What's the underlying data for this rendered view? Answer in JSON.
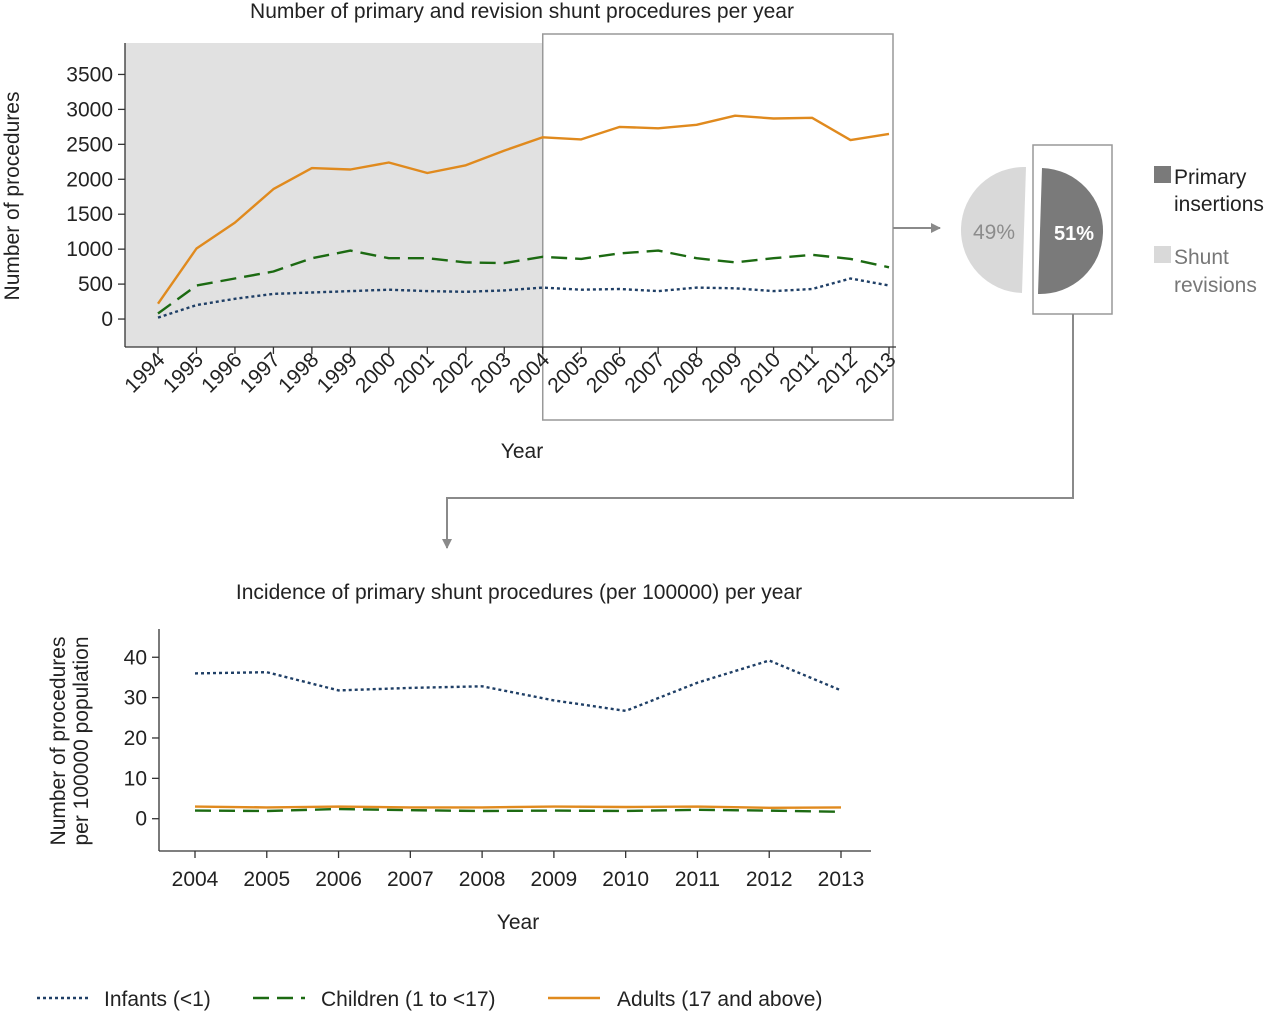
{
  "colors": {
    "infants": "#1f3f66",
    "children": "#1c6a12",
    "adults": "#e08a1e",
    "shade": "#e1e1e1",
    "primary": "#7a7a7a",
    "revision": "#d9d9d9",
    "box": "#999999"
  },
  "chart_data": [
    {
      "type": "line",
      "title": "Number of primary and revision shunt procedures per year",
      "xlabel": "Year",
      "ylabel": "Number of procedures",
      "ylim": [
        -400,
        3950
      ],
      "yticks": [
        0,
        500,
        1000,
        1500,
        2000,
        2500,
        3000,
        3500
      ],
      "grid": false,
      "shaded_range": [
        "1994",
        "2004"
      ],
      "highlight_range": [
        "2004",
        "2013"
      ],
      "categories": [
        "1994",
        "1995",
        "1996",
        "1997",
        "1998",
        "1999",
        "2000",
        "2001",
        "2002",
        "2003",
        "2004",
        "2005",
        "2006",
        "2007",
        "2008",
        "2009",
        "2010",
        "2011",
        "2012",
        "2013"
      ],
      "series": [
        {
          "name": "Infants (<1)",
          "style": "dotted",
          "values": [
            20,
            200,
            290,
            360,
            380,
            400,
            420,
            400,
            390,
            410,
            450,
            420,
            430,
            400,
            450,
            440,
            400,
            430,
            580,
            480
          ]
        },
        {
          "name": "Children (1 to <17)",
          "style": "dashed",
          "values": [
            80,
            480,
            580,
            680,
            870,
            980,
            870,
            870,
            810,
            800,
            890,
            860,
            940,
            980,
            870,
            810,
            870,
            920,
            860,
            740
          ]
        },
        {
          "name": "Adults (17 and above)",
          "style": "solid",
          "values": [
            220,
            1010,
            1380,
            1860,
            2160,
            2140,
            2240,
            2090,
            2200,
            2410,
            2600,
            2570,
            2750,
            2730,
            2780,
            2910,
            2870,
            2880,
            2560,
            2650
          ]
        }
      ]
    },
    {
      "type": "pie",
      "labels": [
        "Shunt revisions",
        "Primary insertions"
      ],
      "values": [
        49,
        51
      ],
      "data_labels": [
        "49%",
        "51%"
      ],
      "legend": [
        {
          "line1": "Primary",
          "line2": "insertions"
        },
        {
          "line1": "Shunt",
          "line2": "revisions"
        }
      ]
    },
    {
      "type": "line",
      "title": "Incidence of primary shunt procedures (per 100000) per year",
      "xlabel": "Year",
      "ylabel_line1": "Number of procedures",
      "ylabel_line2": "per 100000 population",
      "ylim": [
        -8,
        47
      ],
      "yticks": [
        0,
        10,
        20,
        30,
        40
      ],
      "grid": false,
      "categories": [
        "2004",
        "2005",
        "2006",
        "2007",
        "2008",
        "2009",
        "2010",
        "2011",
        "2012",
        "2013"
      ],
      "series": [
        {
          "name": "Infants (<1)",
          "style": "dotted",
          "values": [
            36,
            36.3,
            31.8,
            32.4,
            32.8,
            29.3,
            26.7,
            33.7,
            39.2,
            31.8
          ]
        },
        {
          "name": "Children (1 to <17)",
          "style": "dashed",
          "values": [
            2.0,
            1.9,
            2.4,
            2.1,
            1.9,
            2.0,
            1.9,
            2.2,
            2.0,
            1.7
          ]
        },
        {
          "name": "Adults (17 and above)",
          "style": "solid",
          "values": [
            3.0,
            2.8,
            3.0,
            2.8,
            2.8,
            3.0,
            2.9,
            3.0,
            2.7,
            2.8
          ]
        }
      ]
    }
  ],
  "legend": {
    "position": "bottom",
    "items": [
      {
        "label": "Infants (<1)",
        "style": "dotted"
      },
      {
        "label": "Children (1 to <17)",
        "style": "dashed"
      },
      {
        "label": "Adults (17 and above)",
        "style": "solid"
      }
    ]
  }
}
